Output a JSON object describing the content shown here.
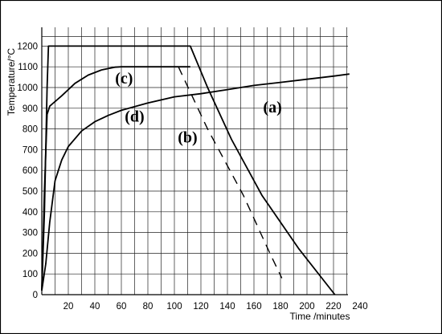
{
  "chart_data": {
    "type": "line",
    "xlabel": "Time /minutes",
    "ylabel": "Temperature/°C",
    "xlim": [
      0,
      240
    ],
    "ylim": [
      0,
      1200
    ],
    "x_ticks": [
      0,
      20,
      40,
      60,
      80,
      100,
      120,
      140,
      160,
      180,
      200,
      220,
      240
    ],
    "x_tick_labels": [
      "",
      "20",
      "40",
      "60",
      "80",
      "100",
      "120",
      "140",
      "160",
      "180",
      "200",
      "220",
      "240"
    ],
    "y_ticks": [
      0,
      100,
      200,
      300,
      400,
      500,
      600,
      700,
      800,
      900,
      1000,
      1100,
      1200
    ],
    "grid": true,
    "series": [
      {
        "name": "(a)",
        "style": "solid",
        "points": [
          [
            0,
            20
          ],
          [
            2,
            400
          ],
          [
            4,
            1000
          ],
          [
            5,
            1200
          ],
          [
            112,
            1200
          ],
          [
            125,
            1000
          ],
          [
            143,
            750
          ],
          [
            166,
            480
          ],
          [
            194,
            220
          ],
          [
            221,
            0
          ]
        ]
      },
      {
        "name": "(b)",
        "style": "dashed",
        "points": [
          [
            103,
            1100
          ],
          [
            125,
            800
          ],
          [
            152,
            480
          ],
          [
            172,
            200
          ],
          [
            181,
            80
          ]
        ]
      },
      {
        "name": "(c)",
        "style": "solid",
        "points": [
          [
            0,
            20
          ],
          [
            2,
            500
          ],
          [
            4,
            870
          ],
          [
            6,
            910
          ],
          [
            15,
            960
          ],
          [
            25,
            1020
          ],
          [
            35,
            1060
          ],
          [
            45,
            1085
          ],
          [
            55,
            1098
          ],
          [
            60,
            1100
          ],
          [
            112,
            1100
          ]
        ]
      },
      {
        "name": "(d)",
        "style": "solid",
        "points": [
          [
            0,
            20
          ],
          [
            3,
            150
          ],
          [
            6,
            350
          ],
          [
            10,
            550
          ],
          [
            15,
            650
          ],
          [
            20,
            715
          ],
          [
            30,
            790
          ],
          [
            40,
            835
          ],
          [
            50,
            865
          ],
          [
            60,
            890
          ],
          [
            80,
            925
          ],
          [
            100,
            955
          ],
          [
            120,
            970
          ],
          [
            140,
            990
          ],
          [
            160,
            1010
          ],
          [
            180,
            1025
          ],
          [
            200,
            1040
          ],
          [
            220,
            1055
          ],
          [
            232,
            1065
          ]
        ]
      }
    ],
    "annotations": [
      {
        "text": "(a)",
        "x": 174,
        "y": 880
      },
      {
        "text": "(b)",
        "x": 110,
        "y": 735
      },
      {
        "text": "(c)",
        "x": 62,
        "y": 1020
      },
      {
        "text": "(d)",
        "x": 70,
        "y": 835
      }
    ]
  }
}
